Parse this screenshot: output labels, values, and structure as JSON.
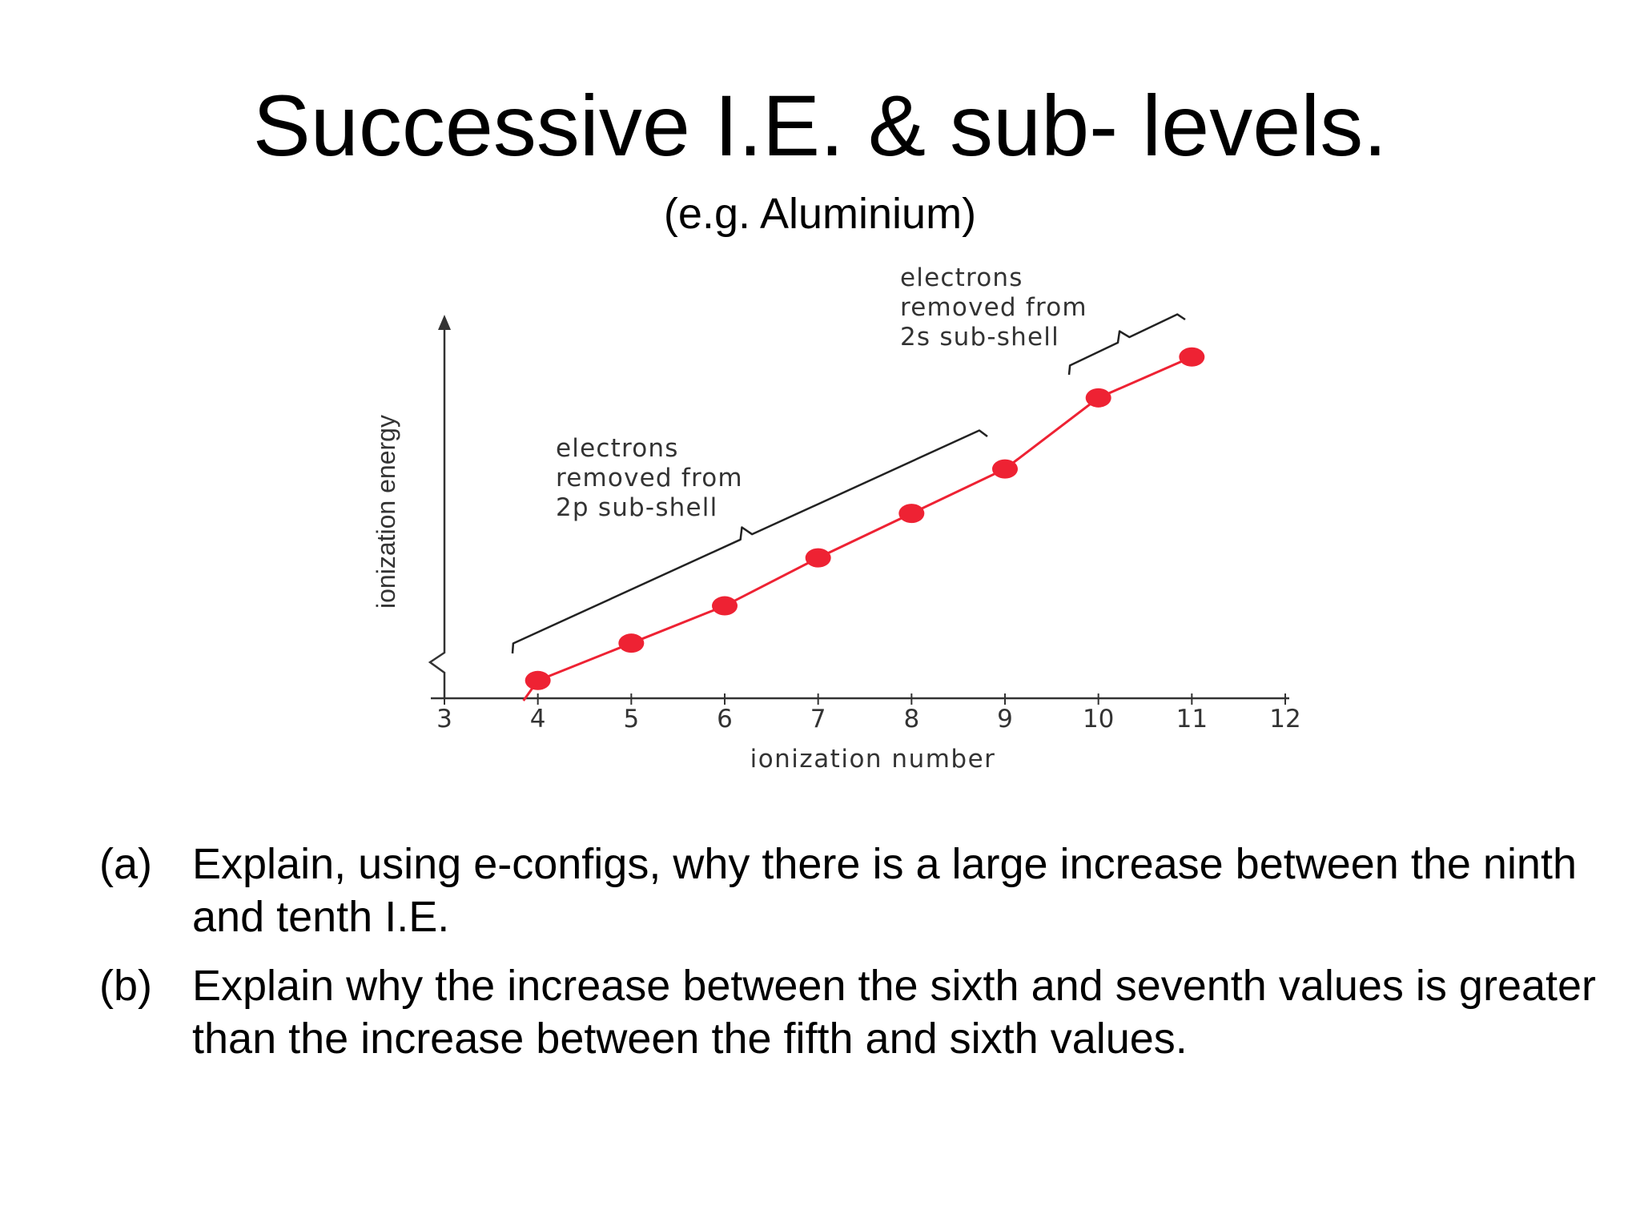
{
  "slide": {
    "title": "Successive I.E. & sub- levels.",
    "subtitle": "(e.g. Aluminium)"
  },
  "questions": [
    {
      "label": "(a)",
      "text": "Explain, using e-configs, why there is a large increase between the ninth and tenth I.E."
    },
    {
      "label": "(b)",
      "text": "Explain why the increase between the sixth and seventh values is greater than the increase between the fifth and sixth values."
    }
  ],
  "chart_data": {
    "type": "line",
    "xlabel": "ionization number",
    "ylabel": "ionization energy",
    "x_ticks": [
      3,
      4,
      5,
      6,
      7,
      8,
      9,
      10,
      11,
      12
    ],
    "xlim": [
      3,
      12
    ],
    "ylim": [
      0,
      10
    ],
    "y_axis_break": true,
    "series": [
      {
        "color": "#ee2233",
        "x": [
          4,
          5,
          6,
          7,
          8,
          9,
          10,
          11
        ],
        "y": [
          0.5,
          1.55,
          2.6,
          3.95,
          5.2,
          6.45,
          8.45,
          9.6
        ]
      }
    ],
    "annotations": [
      {
        "text_lines": [
          "electrons",
          "removed from",
          "2p sub-shell"
        ],
        "from_x": 4,
        "to_x": 9
      },
      {
        "text_lines": [
          "electrons",
          "removed from",
          "2s sub-shell"
        ],
        "from_x": 10,
        "to_x": 11
      }
    ],
    "line_color": "#ee2233",
    "axis_color": "#333333"
  }
}
